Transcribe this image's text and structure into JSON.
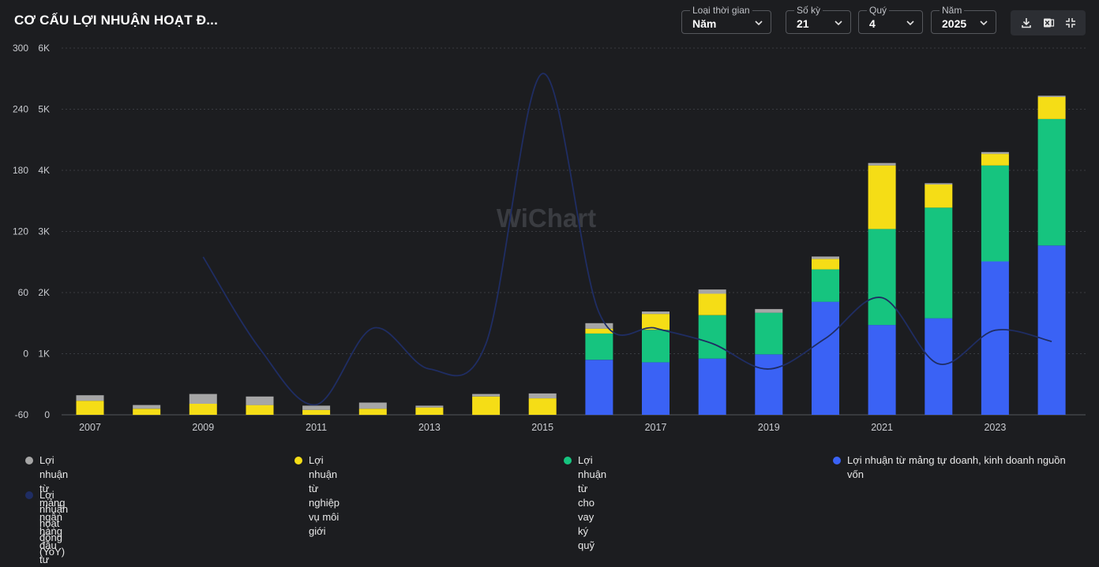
{
  "title": "CƠ CẤU LỢI NHUẬN HOẠT Đ...",
  "controls": {
    "period_type": {
      "label": "Loại thời gian",
      "value": "Năm"
    },
    "periods": {
      "label": "Số kỳ",
      "value": "21"
    },
    "quarter": {
      "label": "Quý",
      "value": "4"
    },
    "year": {
      "label": "Năm",
      "value": "2025"
    }
  },
  "toolbar": {
    "download": "download-icon",
    "excel": "excel-icon",
    "fullscreen": "fullscreen-icon"
  },
  "watermark": "WiChart",
  "colors": {
    "investment_banking": "#a6a6a6",
    "brokerage": "#f5dd16",
    "margin_lending": "#16c47f",
    "proprietary": "#3a62f5",
    "yoy_line": "#1f2d63",
    "background": "#1c1d20"
  },
  "chart_data": {
    "type": "bar",
    "stacked": true,
    "categories": [
      "2007",
      "2008",
      "2009",
      "2010",
      "2011",
      "2012",
      "2013",
      "2014",
      "2015",
      "2016",
      "2017",
      "2018",
      "2019",
      "2020",
      "2021",
      "2022",
      "2023",
      "2024"
    ],
    "x_tick_labels": [
      "2007",
      "2009",
      "2011",
      "2013",
      "2015",
      "2017",
      "2019",
      "2021",
      "2023"
    ],
    "left_axis": {
      "min": -60,
      "max": 300,
      "ticks": [
        "300",
        "240",
        "180",
        "120",
        "60",
        "0",
        "-60"
      ]
    },
    "right_axis": {
      "min": 0,
      "max": 6000,
      "ticks": [
        "6K",
        "5K",
        "4K",
        "3K",
        "2K",
        "1K",
        "0"
      ]
    },
    "series": [
      {
        "name": "Lợi nhuận từ mảng tự doanh, kinh doanh nguồn vốn",
        "key": "proprietary",
        "axis": "right",
        "values": [
          0,
          0,
          0,
          0,
          0,
          0,
          0,
          0,
          0,
          900,
          860,
          920,
          990,
          1850,
          1470,
          1580,
          2510,
          2770
        ]
      },
      {
        "name": "Lợi nhuận từ cho vay ký quỹ",
        "key": "margin_lending",
        "axis": "right",
        "values": [
          0,
          0,
          0,
          0,
          0,
          0,
          0,
          0,
          0,
          430,
          530,
          710,
          680,
          530,
          1570,
          1810,
          1570,
          2070
        ]
      },
      {
        "name": "Lợi nhuận từ nghiệp vụ môi giới",
        "key": "brokerage",
        "axis": "right",
        "values": [
          230,
          100,
          180,
          160,
          80,
          100,
          120,
          300,
          270,
          80,
          260,
          350,
          0,
          170,
          1040,
          380,
          190,
          360
        ]
      },
      {
        "name": "Lợi nhuận từ mảng ngân hàng đầu tư",
        "key": "investment_banking",
        "axis": "right",
        "values": [
          90,
          60,
          160,
          140,
          70,
          100,
          30,
          40,
          80,
          90,
          40,
          70,
          60,
          40,
          40,
          20,
          30,
          20
        ]
      }
    ],
    "line_series": {
      "name": "Lợi nhuận hoạt động (YoY)",
      "axis": "left",
      "values": [
        null,
        null,
        95,
        5,
        -50,
        25,
        -15,
        10,
        275,
        40,
        25,
        10,
        -15,
        15,
        55,
        -10,
        23,
        12
      ]
    },
    "legend": [
      {
        "key": "investment_banking",
        "label": "Lợi nhuận từ mảng ngân hàng đầu tư"
      },
      {
        "key": "brokerage",
        "label": "Lợi nhuận từ nghiệp vụ môi giới"
      },
      {
        "key": "margin_lending",
        "label": "Lợi nhuận từ cho vay ký quỹ"
      },
      {
        "key": "proprietary",
        "label": "Lợi nhuận từ mảng tự doanh, kinh doanh nguồn vốn"
      },
      {
        "key": "yoy_line",
        "label": "Lợi nhuận hoạt động (YoY)"
      }
    ]
  }
}
